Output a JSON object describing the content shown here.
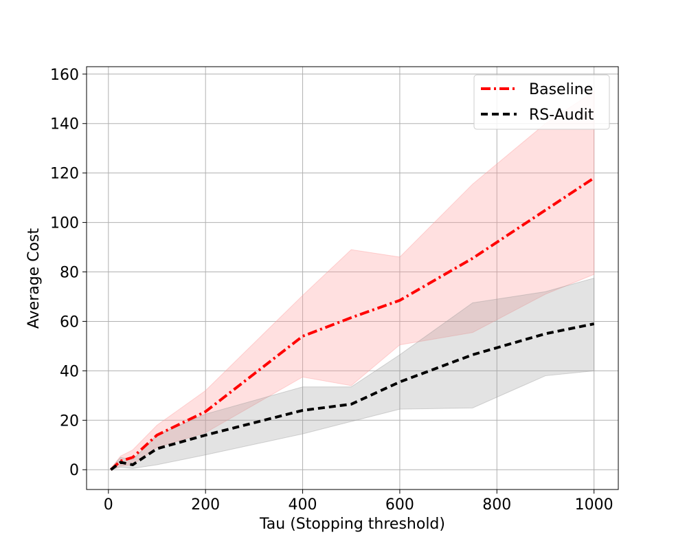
{
  "chart_data": {
    "type": "line",
    "xlabel": "Tau (Stopping threshold)",
    "ylabel": "Average Cost",
    "xlim": [
      -45,
      1050
    ],
    "ylim": [
      -8,
      163
    ],
    "xticks": [
      0,
      200,
      400,
      600,
      800,
      1000
    ],
    "yticks": [
      0,
      20,
      40,
      60,
      80,
      100,
      120,
      140,
      160
    ],
    "grid": true,
    "legend_position": "top-right",
    "series": [
      {
        "name": "Baseline",
        "color": "#ff0000",
        "dash": "dash-dot",
        "x": [
          5,
          25,
          50,
          100,
          200,
          400,
          500,
          600,
          750,
          900,
          1000
        ],
        "y": [
          0,
          3.5,
          5,
          14,
          23.5,
          54,
          61.5,
          68.5,
          85.5,
          105,
          118
        ],
        "lower": [
          0,
          1.5,
          2,
          9,
          15,
          37.5,
          34,
          50.5,
          55.5,
          71,
          79
        ],
        "upper": [
          0.5,
          5.5,
          8,
          18,
          32,
          70.5,
          89,
          86,
          115.5,
          140,
          153
        ]
      },
      {
        "name": "RS-Audit",
        "color": "#000000",
        "dash": "dashed",
        "x": [
          5,
          25,
          50,
          100,
          200,
          400,
          500,
          600,
          750,
          900,
          1000
        ],
        "y": [
          0,
          3,
          2,
          8.5,
          14,
          24,
          26.5,
          35.5,
          46.5,
          55,
          59
        ],
        "lower": [
          0,
          1,
          0.5,
          2,
          6,
          14.5,
          19.5,
          24.5,
          25,
          38,
          40
        ],
        "upper": [
          0.5,
          5,
          4,
          14,
          22.5,
          33.5,
          33.5,
          46.5,
          67.5,
          72,
          77.5
        ]
      }
    ]
  }
}
